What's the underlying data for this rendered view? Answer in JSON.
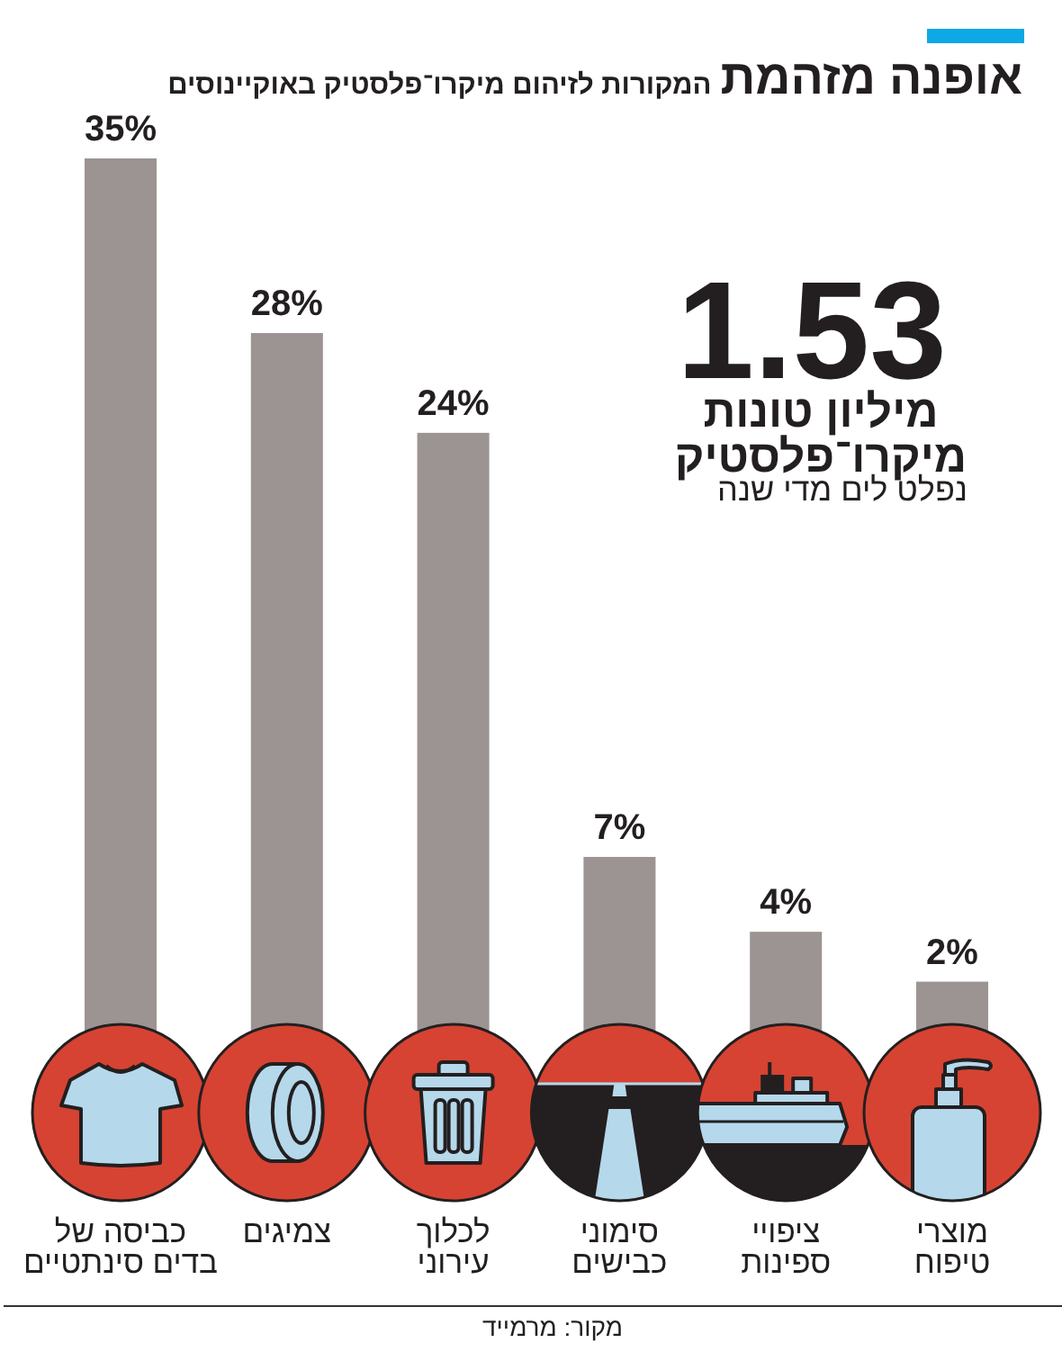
{
  "chart_data": {
    "type": "bar",
    "title": "אופנה מזהמת",
    "subtitle": "המקורות לזיהום מיקרו־פלסטיק באוקיינוסים",
    "categories": [
      "כביסה של\nבדים סינתטיים",
      "צמיגים",
      "לכלוך\nעירוני",
      "סימוני\nכבישים",
      "ציפויי\nספינות",
      "מוצרי\nטיפוח"
    ],
    "values": [
      35,
      28,
      24,
      7,
      4,
      2
    ],
    "color": "#9c9492",
    "value_labels": [
      "35%",
      "28%",
      "24%",
      "7%",
      "4%",
      "2%"
    ],
    "annotations": [
      "1.53",
      "מיליון טונות\nמיקרו־פלסטיק",
      "נפלט לים מדי שנה",
      "מקור: מרמייד"
    ]
  }
}
